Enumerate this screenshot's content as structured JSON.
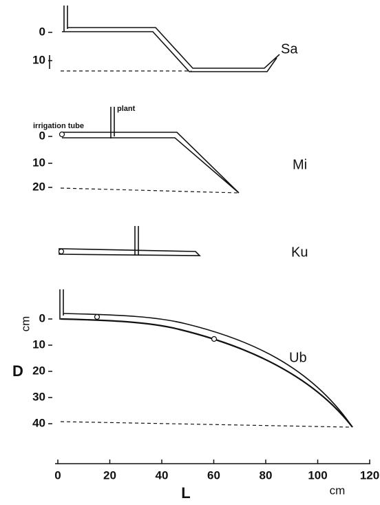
{
  "panels": [
    {
      "name": "Sa",
      "yticks": [
        "0",
        "10"
      ]
    },
    {
      "name": "Mi",
      "yticks": [
        "0",
        "10",
        "20"
      ],
      "annotations": [
        "irrigation tube",
        "plant"
      ]
    },
    {
      "name": "Ku",
      "yticks": []
    },
    {
      "name": "Ub",
      "yticks": [
        "0",
        "10",
        "20",
        "30",
        "40"
      ],
      "ylabel": "D",
      "yunit": "cm"
    }
  ],
  "xaxis": {
    "ticks": [
      "0",
      "20",
      "40",
      "60",
      "80",
      "100",
      "120"
    ],
    "label": "L",
    "unit": "cm"
  }
}
